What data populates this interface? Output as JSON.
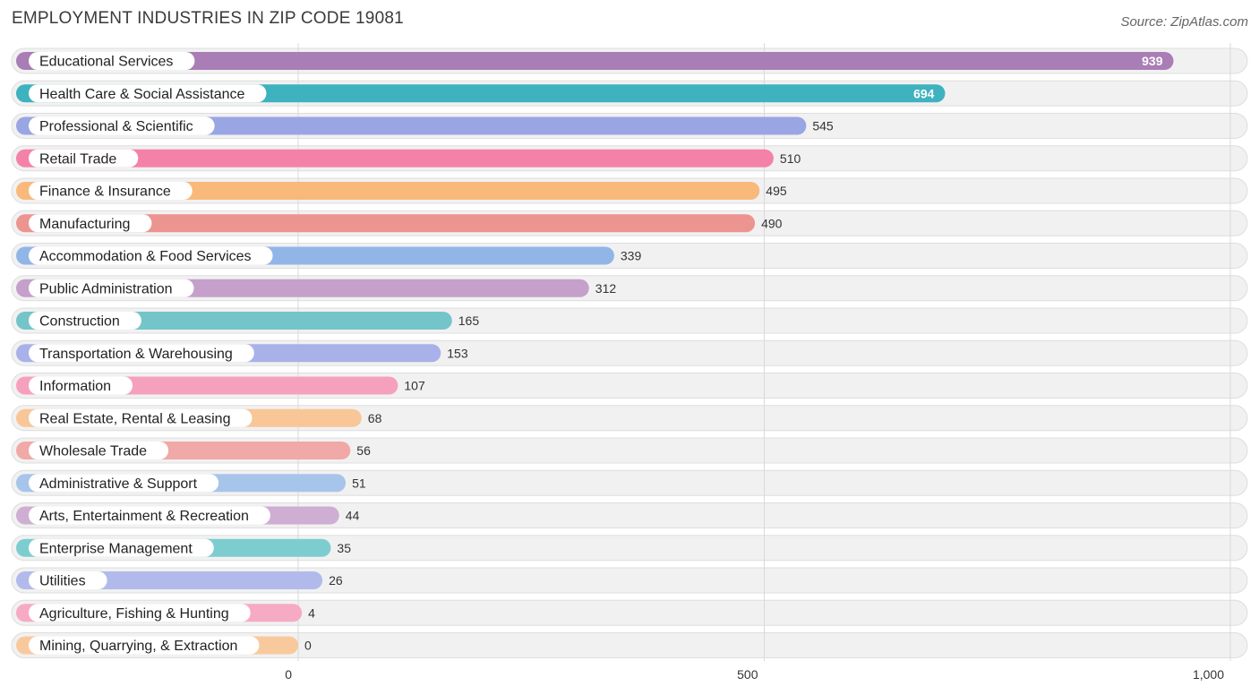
{
  "header": {
    "title": "EMPLOYMENT INDUSTRIES IN ZIP CODE 19081",
    "source": "Source: ZipAtlas.com"
  },
  "chart_data": {
    "type": "bar",
    "orientation": "horizontal",
    "title": "EMPLOYMENT INDUSTRIES IN ZIP CODE 19081",
    "categories": [
      "Educational Services",
      "Health Care & Social Assistance",
      "Professional & Scientific",
      "Retail Trade",
      "Finance & Insurance",
      "Manufacturing",
      "Accommodation & Food Services",
      "Public Administration",
      "Construction",
      "Transportation & Warehousing",
      "Information",
      "Real Estate, Rental & Leasing",
      "Wholesale Trade",
      "Administrative & Support",
      "Arts, Entertainment & Recreation",
      "Enterprise Management",
      "Utilities",
      "Agriculture, Fishing & Hunting",
      "Mining, Quarrying, & Extraction"
    ],
    "values": [
      939,
      694,
      545,
      510,
      495,
      490,
      339,
      312,
      165,
      153,
      107,
      68,
      56,
      51,
      44,
      35,
      26,
      4,
      0
    ],
    "value_labels": [
      "939",
      "694",
      "545",
      "510",
      "495",
      "490",
      "339",
      "312",
      "165",
      "153",
      "107",
      "68",
      "56",
      "51",
      "44",
      "35",
      "26",
      "4",
      "0"
    ],
    "colors": [
      "#a97db5",
      "#3eb2be",
      "#9aa5e3",
      "#f481a8",
      "#f8b97a",
      "#eb9490",
      "#92b5e7",
      "#c4a0cb",
      "#74c5c9",
      "#a9b1e9",
      "#f5a1be",
      "#f9c697",
      "#f0a9a6",
      "#a7c5ea",
      "#cfaed3",
      "#7dcdd0",
      "#b2baeb",
      "#f6aac4",
      "#f9c99e"
    ],
    "xticks": [
      0,
      500,
      1000
    ],
    "xtick_labels": [
      "0",
      "500",
      "1,000"
    ],
    "xlim": [
      0,
      1000
    ],
    "xlabel": "",
    "ylabel": "",
    "grid": true
  }
}
